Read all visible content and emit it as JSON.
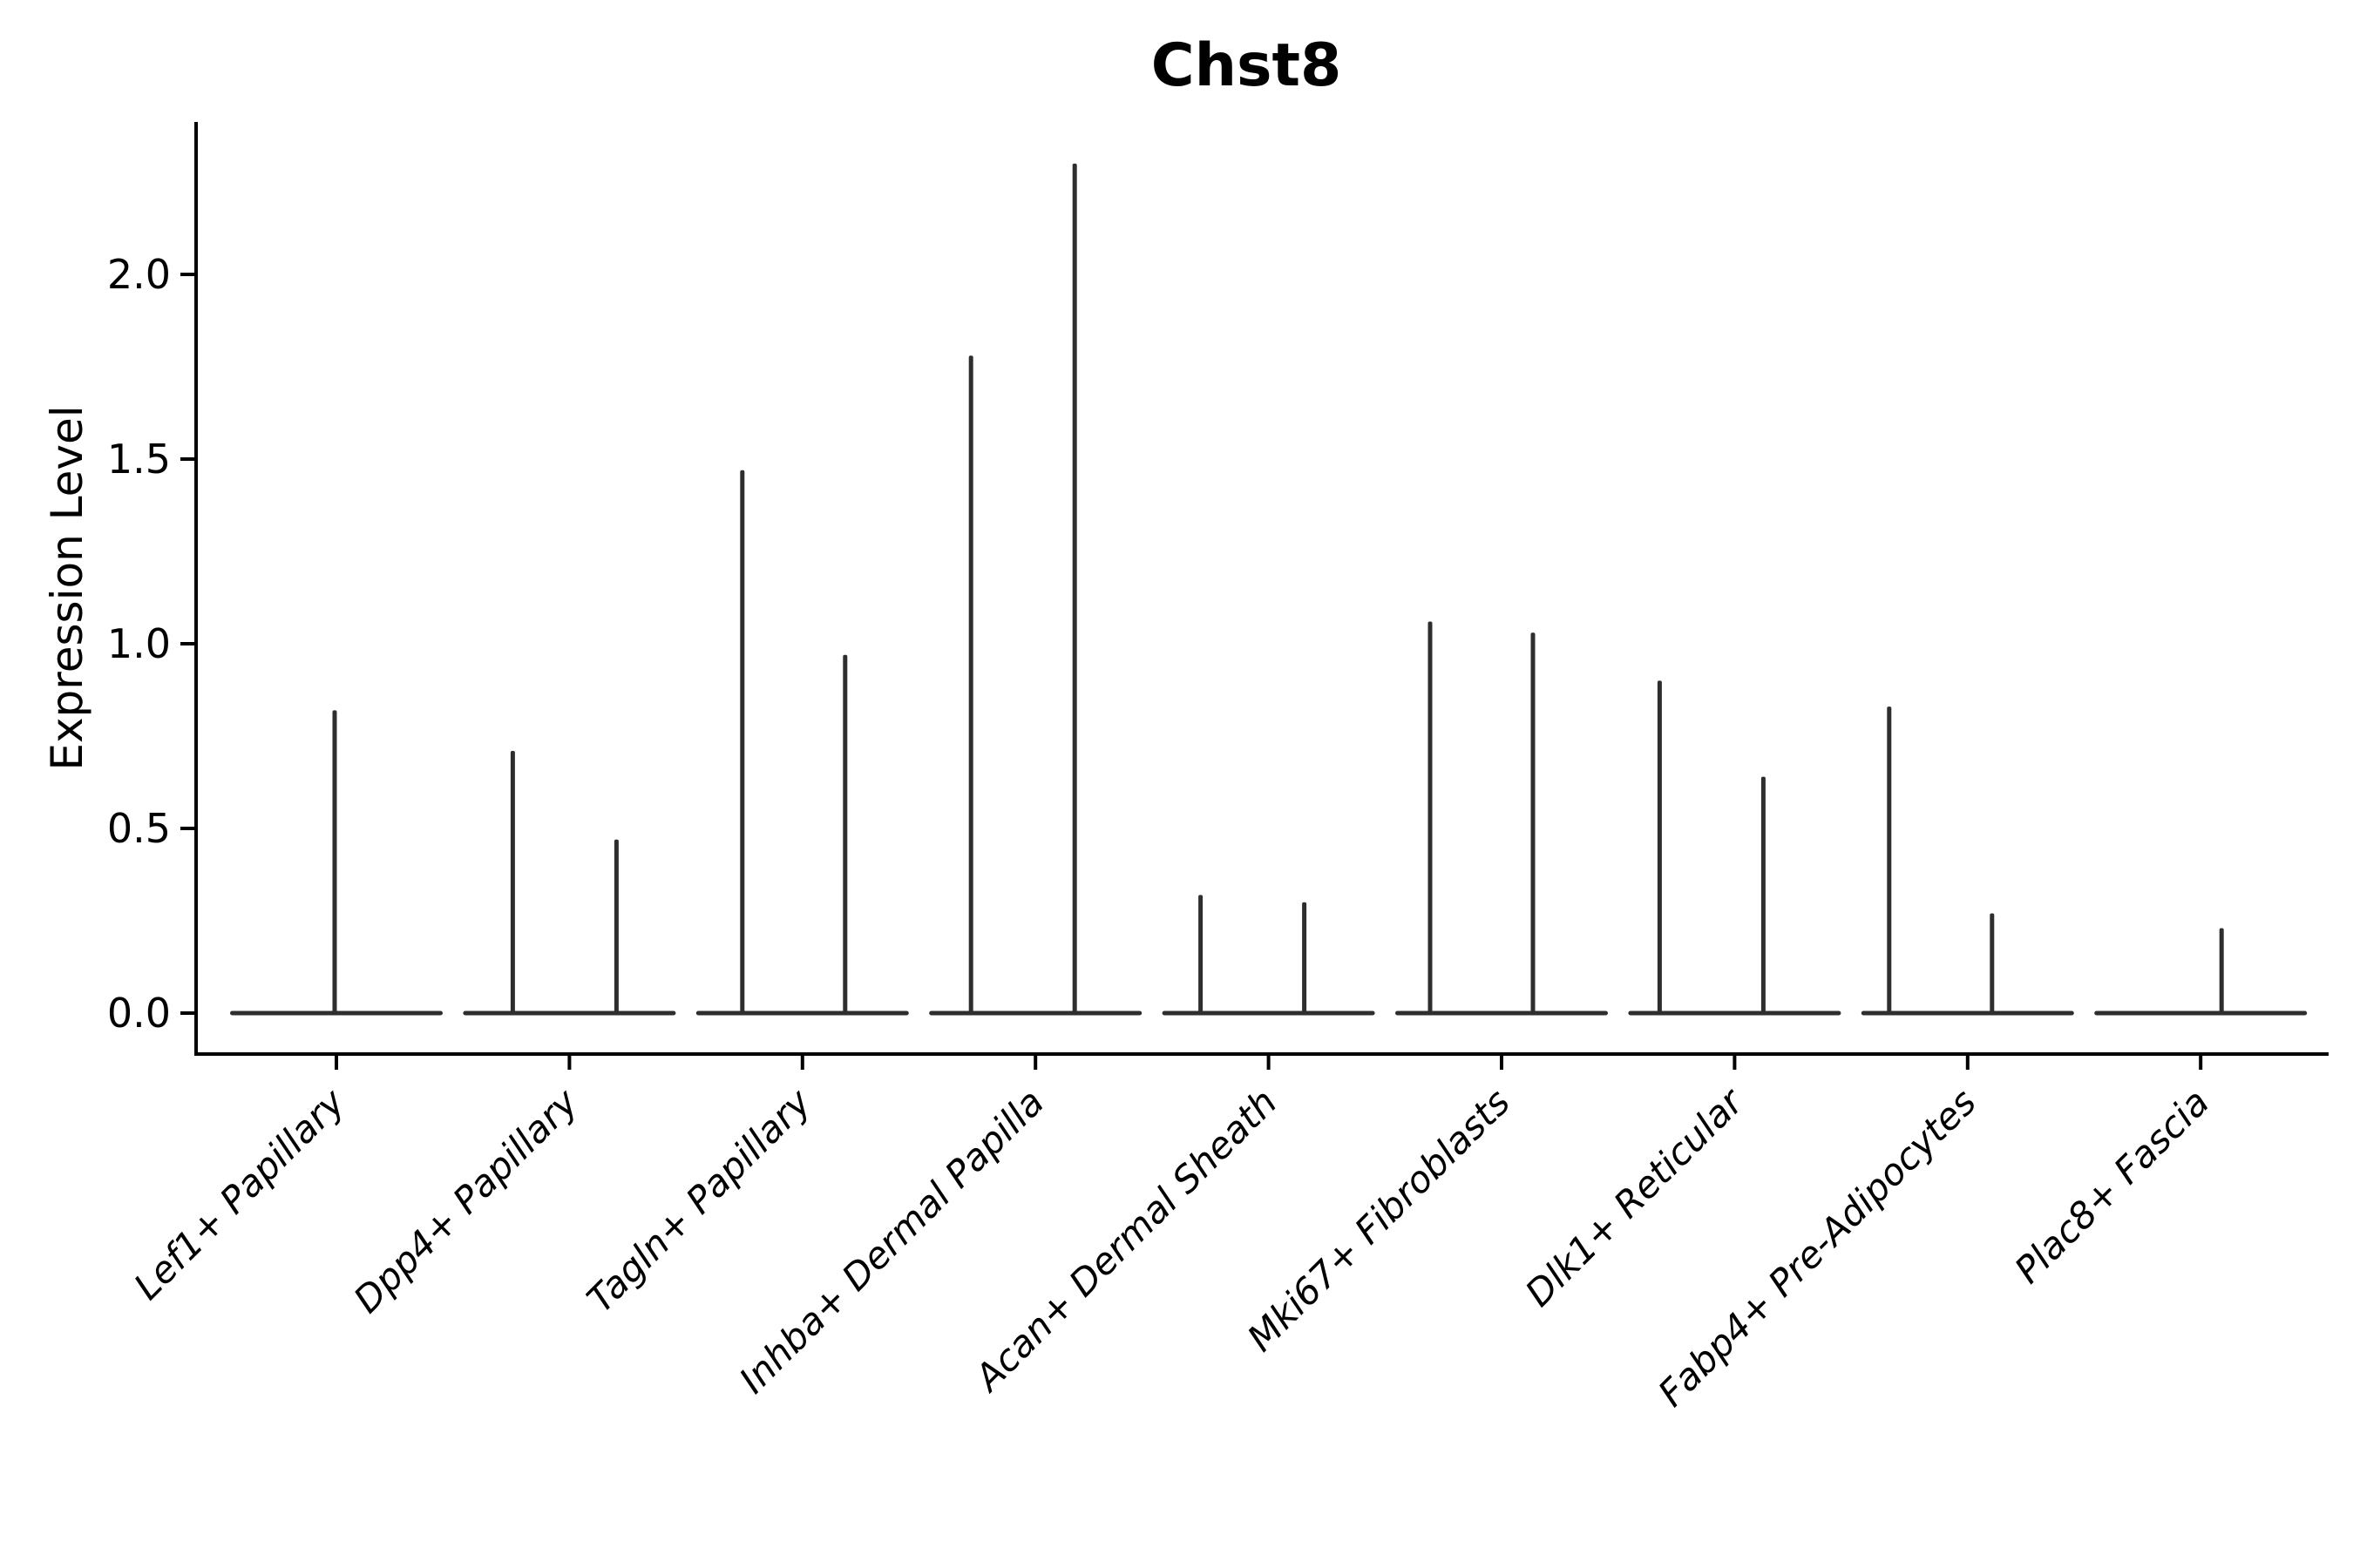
{
  "title": "Chst8",
  "ylabel": "Expression Level",
  "colors": {
    "violin": "#2e2e2e",
    "axis": "#000000",
    "background": "#ffffff",
    "text": "#000000"
  },
  "chart_data": {
    "type": "violin",
    "title": "Chst8",
    "xlabel": "",
    "ylabel": "Expression Level",
    "grid": false,
    "legend": "none",
    "ylim": [
      -0.11,
      2.42
    ],
    "ytick_labels": [
      "0.0",
      "0.5",
      "1.0",
      "1.5",
      "2.0"
    ],
    "ytick_values": [
      0.0,
      0.5,
      1.0,
      1.5,
      2.0
    ],
    "categories": [
      "Lef1+ Papillary",
      "Dpp4+ Papillary",
      "Tagln+ Papillary",
      "Inhba+ Dermal Papilla",
      "Acan+ Dermal Sheath",
      "Mki67+ Fibroblasts",
      "Dlk1+ Reticular",
      "Fabp4+ Pre-Adipocytes",
      "Plac8+ Fascia"
    ],
    "description": "Violin plot of Chst8 expression per fibroblast cluster; all violins are collapsed at 0 (bulk of cells at zero expression) with thin density spikes reaching the maximum expression values listed.",
    "violins": [
      {
        "category": "Lef1+ Papillary",
        "spikes": [
          {
            "dx": -2,
            "max": 0.82
          }
        ]
      },
      {
        "category": "Dpp4+ Papillary",
        "spikes": [
          {
            "dx": -65,
            "max": 0.71
          },
          {
            "dx": 54,
            "max": 0.47
          }
        ]
      },
      {
        "category": "Tagln+ Papillary",
        "spikes": [
          {
            "dx": -69,
            "max": 1.47
          },
          {
            "dx": 49,
            "max": 0.97
          }
        ]
      },
      {
        "category": "Inhba+ Dermal Papilla",
        "spikes": [
          {
            "dx": -74,
            "max": 1.78
          },
          {
            "dx": 45,
            "max": 2.3
          }
        ]
      },
      {
        "category": "Acan+ Dermal Sheath",
        "spikes": [
          {
            "dx": -78,
            "max": 0.32
          },
          {
            "dx": 41,
            "max": 0.3
          }
        ]
      },
      {
        "category": "Mki67+ Fibroblasts",
        "spikes": [
          {
            "dx": -82,
            "max": 1.06
          },
          {
            "dx": 36,
            "max": 1.03
          }
        ]
      },
      {
        "category": "Dlk1+ Reticular",
        "spikes": [
          {
            "dx": -86,
            "max": 0.9
          },
          {
            "dx": 33,
            "max": 0.64
          }
        ]
      },
      {
        "category": "Fabp4+ Pre-Adipocytes",
        "spikes": [
          {
            "dx": -90,
            "max": 0.83
          },
          {
            "dx": 28,
            "max": 0.27
          }
        ]
      },
      {
        "category": "Plac8+ Fascia",
        "spikes": [
          {
            "dx": 24,
            "max": 0.23
          }
        ]
      }
    ]
  }
}
